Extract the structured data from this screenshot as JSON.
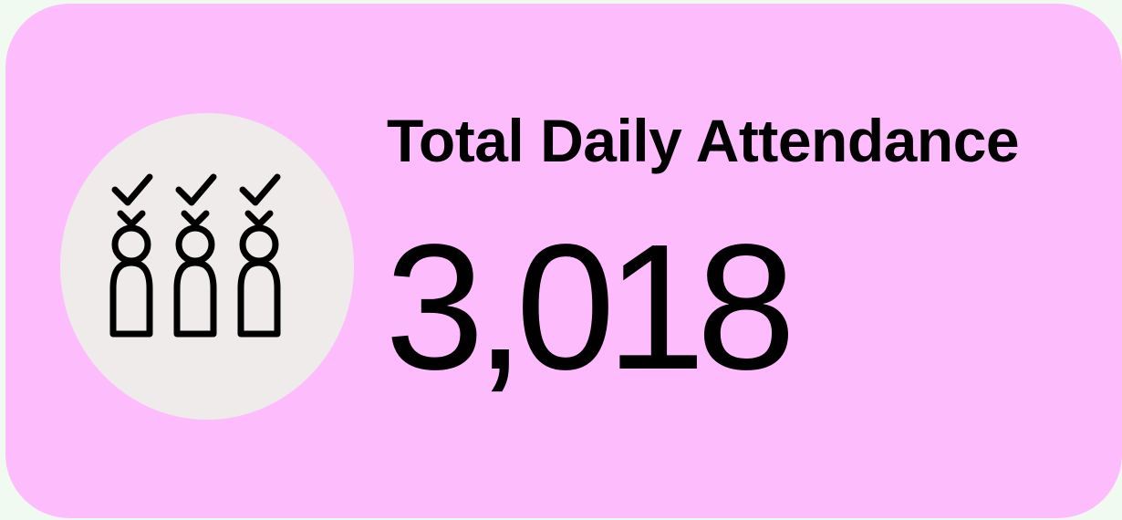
{
  "card": {
    "title": "Total Daily Attendance",
    "value": "3,018"
  }
}
